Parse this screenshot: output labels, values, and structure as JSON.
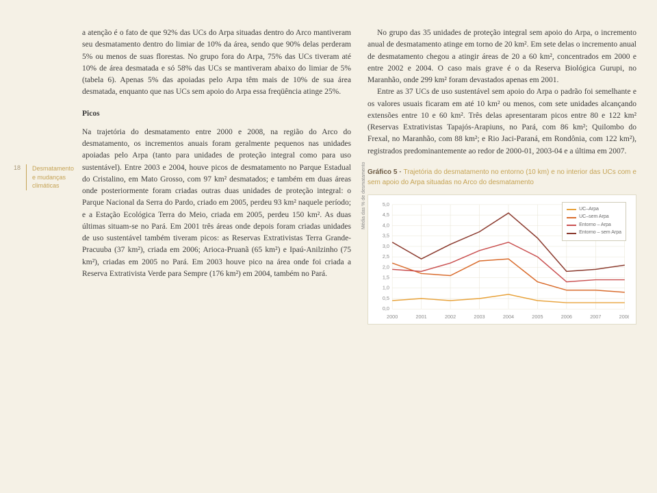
{
  "sidebar": {
    "page_number": "18",
    "label_line1": "Desmatamento",
    "label_line2": "e mudanças",
    "label_line3": "climáticas"
  },
  "col1": {
    "para1": "a atenção é o fato de que 92% das UCs do Arpa situadas dentro do Arco mantiveram seu desmatamento dentro do limiar de 10% da área, sendo que 90% delas perderam 5% ou menos de suas florestas. No grupo fora do Arpa, 75% das UCs tiveram até 10% de área desmatada e só 58% das UCs se mantiveram abaixo do limiar de 5% (tabela 6). Apenas 5% das apoiadas pelo Arpa têm mais de 10% de sua área desmatada, enquanto que nas UCs sem apoio do Arpa essa freqüência atinge 25%.",
    "heading": "Picos",
    "para2": "Na trajetória do desmatamento entre 2000 e 2008, na região do Arco do desmatamento, os incrementos anuais foram geralmente pequenos nas unidades apoiadas pelo Arpa (tanto para unidades de proteção integral como para uso sustentável). Entre 2003 e 2004, houve picos de desmatamento no Parque Estadual do Cristalino, em Mato Grosso, com 97 km² desmatados; e também em duas áreas onde posteriormente foram criadas outras duas unidades de proteção integral: o Parque Nacional da Serra do Pardo, criado em 2005, perdeu 93 km² naquele período; e a Estação Ecológica Terra do Meio, criada em 2005, perdeu 150 km². As duas últimas situam-se no Pará. Em 2001 três áreas onde depois foram criadas unidades de uso sustentável também tiveram picos: as Reservas Extrativistas Terra Grande-Pracuuba (37 km²), criada em 2006; Arioca-Pruanã (65 km²) e Ipaú-Anilzinho (75 km²), criadas em 2005 no Pará. Em 2003 houve pico na área onde foi criada a Reserva Extrativista Verde para Sempre (176 km²) em 2004, também no Pará."
  },
  "col2": {
    "para1": "No grupo das 35 unidades de proteção integral sem apoio do Arpa, o incremento anual de desmatamento atinge em torno de 20 km². Em sete delas o incremento anual de desmatamento chegou a atingir áreas de 20 a 60 km², concentrados em 2000 e entre 2002 e 2004. O caso mais grave é o da Reserva Biológica Gurupi, no Maranhão, onde 299 km² foram devastados apenas em 2001.",
    "para2": "Entre as 37 UCs de uso sustentável sem apoio do Arpa o padrão foi semelhante e os valores usuais ficaram em até 10 km² ou menos, com sete unidades alcançando extensões entre 10 e 60 km². Três delas apresentaram picos entre 80 e 122 km² (Reservas Extrativistas Tapajós-Arapiuns, no Pará, com 86 km²; Quilombo do Frexal, no Maranhão, com 88 km²; e Rio Jaci-Paraná, em Rondônia, com 122 km²), registrados predominantemente ao redor de 2000-01, 2003-04 e a última em 2007.",
    "chart_title_strong": "Gráfico 5 ·",
    "chart_title_desc": "Trajetória do desmatamento no entorno (10 km) e no interior das UCs com e sem apoio do Arpa situadas no Arco do desmatamento"
  },
  "chart": {
    "type": "line",
    "background_color": "#ffffff",
    "grid_color": "#e8e4d4",
    "axis_color": "#888888",
    "line_width": 1.5,
    "ylabel": "Média das % de desmatamento",
    "ylim": [
      0.0,
      5.0
    ],
    "ytick_step": 0.5,
    "yticks": [
      "0,0",
      "0,5",
      "1,0",
      "1,5",
      "2,0",
      "2,5",
      "3,0",
      "3,5",
      "4,0",
      "4,5",
      "5,0"
    ],
    "xlabels": [
      "2000",
      "2001",
      "2002",
      "2003",
      "2004",
      "2005",
      "2006",
      "2007",
      "2008"
    ],
    "series": [
      {
        "name": "UC–Arpa",
        "color": "#e8a23a",
        "values": [
          0.4,
          0.5,
          0.4,
          0.5,
          0.7,
          0.4,
          0.3,
          0.3,
          0.3
        ]
      },
      {
        "name": "UC–sem Arpa",
        "color": "#d96b2b",
        "values": [
          2.2,
          1.7,
          1.6,
          2.3,
          2.4,
          1.3,
          0.9,
          0.9,
          0.8
        ]
      },
      {
        "name": "Entorno – Arpa",
        "color": "#c94f4f",
        "values": [
          1.9,
          1.8,
          2.2,
          2.8,
          3.2,
          2.5,
          1.3,
          1.4,
          1.4
        ]
      },
      {
        "name": "Entorno – sem Arpa",
        "color": "#8b3a2e",
        "values": [
          3.2,
          2.4,
          3.1,
          3.7,
          4.6,
          3.4,
          1.8,
          1.9,
          2.1
        ]
      }
    ],
    "tick_fontsize": 7,
    "tick_color": "#888888",
    "legend": {
      "items": [
        "UC–Arpa",
        "UC–sem Arpa",
        "Entorno – Arpa",
        "Entorno – sem Arpa"
      ],
      "colors": [
        "#e8a23a",
        "#d96b2b",
        "#c94f4f",
        "#8b3a2e"
      ]
    }
  }
}
